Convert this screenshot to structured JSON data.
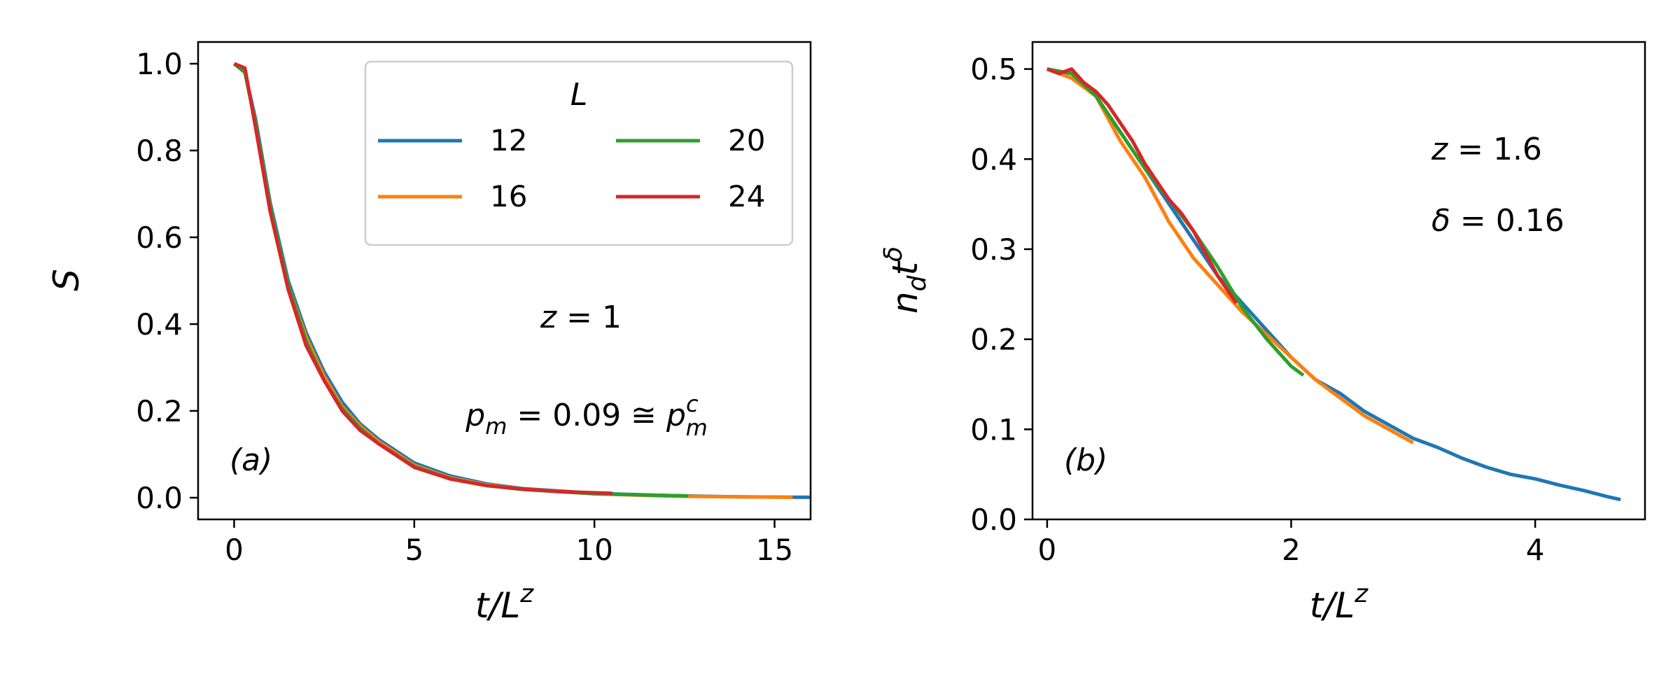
{
  "chart_data": [
    {
      "type": "line",
      "panel_label": "(a)",
      "xlabel": "t/L^z",
      "ylabel": "S",
      "xlim": [
        -1,
        16
      ],
      "ylim": [
        -0.05,
        1.05
      ],
      "xticks": [
        "0",
        "5",
        "10",
        "15"
      ],
      "xtick_values": [
        0,
        5,
        10,
        15
      ],
      "yticks": [
        "0.0",
        "0.2",
        "0.4",
        "0.6",
        "0.8",
        "1.0"
      ],
      "ytick_values": [
        0.0,
        0.2,
        0.4,
        0.6,
        0.8,
        1.0
      ],
      "grid": false,
      "legend": {
        "title": "L",
        "placement": "top-right",
        "columns": 2
      },
      "annotations": [
        "z = 1",
        "p_m = 0.09 ≅ p_m^c"
      ],
      "series": [
        {
          "name": "12",
          "color": "#1f77b4",
          "x": [
            0,
            0.3,
            0.6,
            1.0,
            1.5,
            2.0,
            2.5,
            3.0,
            3.5,
            4.0,
            5.0,
            6.0,
            7.0,
            8.0,
            10.0,
            12.0,
            14.0,
            16.0
          ],
          "y": [
            1.0,
            0.98,
            0.87,
            0.68,
            0.5,
            0.38,
            0.29,
            0.22,
            0.17,
            0.135,
            0.08,
            0.05,
            0.032,
            0.021,
            0.01,
            0.005,
            0.002,
            0.001
          ]
        },
        {
          "name": "16",
          "color": "#ff7f0e",
          "x": [
            0,
            0.3,
            0.6,
            1.0,
            1.5,
            2.0,
            2.5,
            3.0,
            3.5,
            4.0,
            5.0,
            6.0,
            7.0,
            8.0,
            10.0,
            12.0,
            12.7,
            14.0,
            15.5
          ],
          "y": [
            1.0,
            0.98,
            0.86,
            0.67,
            0.49,
            0.37,
            0.28,
            0.21,
            0.165,
            0.13,
            0.075,
            0.046,
            0.03,
            0.02,
            0.009,
            0.004,
            0.003,
            0.002,
            0.001
          ]
        },
        {
          "name": "20",
          "color": "#2ca02c",
          "x": [
            0,
            0.3,
            0.6,
            1.0,
            1.5,
            2.0,
            2.5,
            3.0,
            3.5,
            4.0,
            5.0,
            6.0,
            7.0,
            8.0,
            10.0,
            12.6
          ],
          "y": [
            1.0,
            0.98,
            0.86,
            0.67,
            0.49,
            0.36,
            0.27,
            0.205,
            0.16,
            0.125,
            0.072,
            0.044,
            0.028,
            0.019,
            0.009,
            0.004
          ]
        },
        {
          "name": "24",
          "color": "#d62728",
          "x": [
            0,
            0.3,
            0.6,
            1.0,
            1.5,
            2.0,
            2.5,
            3.0,
            3.5,
            4.0,
            5.0,
            6.0,
            7.0,
            8.0,
            9.0,
            10.5
          ],
          "y": [
            1.0,
            0.99,
            0.85,
            0.66,
            0.48,
            0.35,
            0.27,
            0.2,
            0.155,
            0.125,
            0.07,
            0.043,
            0.028,
            0.02,
            0.014,
            0.01
          ]
        }
      ]
    },
    {
      "type": "line",
      "panel_label": "(b)",
      "xlabel": "t/L^z",
      "ylabel": "n_d t^δ",
      "xlim": [
        -0.12,
        4.9
      ],
      "ylim": [
        0,
        0.53
      ],
      "xticks": [
        "0",
        "2",
        "4"
      ],
      "xtick_values": [
        0,
        2,
        4
      ],
      "yticks": [
        "0.0",
        "0.1",
        "0.2",
        "0.3",
        "0.4",
        "0.5"
      ],
      "ytick_values": [
        0.0,
        0.1,
        0.2,
        0.3,
        0.4,
        0.5
      ],
      "grid": false,
      "annotations": [
        "z = 1.6",
        "δ = 0.16"
      ],
      "series": [
        {
          "name": "12",
          "color": "#1f77b4",
          "x": [
            0,
            0.2,
            0.4,
            0.6,
            0.8,
            1.0,
            1.2,
            1.4,
            1.6,
            1.8,
            2.0,
            2.2,
            2.4,
            2.6,
            2.8,
            3.0,
            3.2,
            3.4,
            3.6,
            3.8,
            4.0,
            4.2,
            4.4,
            4.6,
            4.7
          ],
          "y": [
            0.5,
            0.49,
            0.47,
            0.43,
            0.39,
            0.35,
            0.31,
            0.27,
            0.24,
            0.21,
            0.18,
            0.155,
            0.14,
            0.12,
            0.105,
            0.09,
            0.08,
            0.068,
            0.058,
            0.05,
            0.045,
            0.038,
            0.032,
            0.025,
            0.022
          ]
        },
        {
          "name": "16",
          "color": "#ff7f0e",
          "x": [
            0,
            0.2,
            0.4,
            0.6,
            0.8,
            1.0,
            1.2,
            1.4,
            1.6,
            1.8,
            2.0,
            2.2,
            2.4,
            2.6,
            2.8,
            3.0
          ],
          "y": [
            0.5,
            0.49,
            0.47,
            0.42,
            0.38,
            0.33,
            0.29,
            0.26,
            0.23,
            0.205,
            0.18,
            0.155,
            0.135,
            0.115,
            0.1,
            0.085
          ]
        },
        {
          "name": "20",
          "color": "#2ca02c",
          "x": [
            0,
            0.2,
            0.4,
            0.6,
            0.8,
            1.0,
            1.2,
            1.4,
            1.6,
            1.8,
            2.0,
            2.1
          ],
          "y": [
            0.5,
            0.495,
            0.47,
            0.43,
            0.39,
            0.355,
            0.32,
            0.28,
            0.235,
            0.2,
            0.17,
            0.16
          ]
        },
        {
          "name": "24",
          "color": "#d62728",
          "x": [
            0,
            0.1,
            0.2,
            0.3,
            0.4,
            0.5,
            0.6,
            0.7,
            0.8,
            0.9,
            1.0,
            1.1,
            1.2,
            1.3,
            1.4,
            1.5,
            1.55
          ],
          "y": [
            0.5,
            0.495,
            0.5,
            0.485,
            0.475,
            0.46,
            0.44,
            0.42,
            0.395,
            0.375,
            0.355,
            0.34,
            0.32,
            0.295,
            0.27,
            0.25,
            0.24
          ]
        }
      ]
    }
  ]
}
